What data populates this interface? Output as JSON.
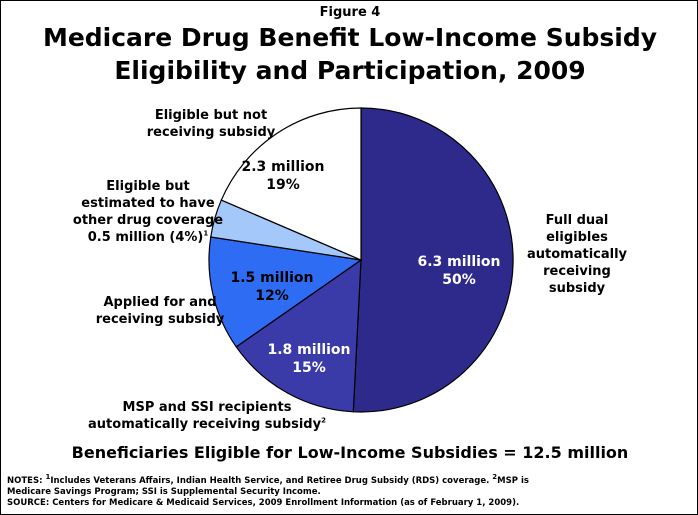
{
  "figure_label": "Figure 4",
  "title_line1": "Medicare Drug Benefit Low-Income Subsidy",
  "title_line2": "Eligibility and Participation, 2009",
  "chart_data": {
    "type": "pie",
    "title": "Medicare Drug Benefit Low-Income Subsidy Eligibility and Participation, 2009",
    "total_label": "Beneficiaries Eligible for Low-Income Subsidies = 12.5 million",
    "slices": [
      {
        "name": "Full dual eligibles automatically receiving subsidy",
        "value": 6.3,
        "percent": 50,
        "value_label": "6.3 million",
        "percent_label": "50%",
        "color": "#2e2a8c"
      },
      {
        "name": "MSP and SSI recipients automatically receiving subsidy",
        "value": 1.8,
        "percent": 15,
        "value_label": "1.8 million",
        "percent_label": "15%",
        "color": "#3a3aa8"
      },
      {
        "name": "Applied for and receiving subsidy",
        "value": 1.5,
        "percent": 12,
        "value_label": "1.5 million",
        "percent_label": "12%",
        "color": "#2f6cf4"
      },
      {
        "name": "Eligible but estimated to have other drug coverage",
        "value": 0.5,
        "percent": 4,
        "value_label": "0.5 million (4%)",
        "percent_label": "",
        "color": "#a4c8fa"
      },
      {
        "name": "Eligible but not receiving subsidy",
        "value": 2.3,
        "percent": 19,
        "value_label": "2.3 million",
        "percent_label": "19%",
        "color": "#ffffff"
      }
    ]
  },
  "labels": {
    "full_dual": [
      "Full dual",
      "eligibles",
      "automatically",
      "receiving",
      "subsidy"
    ],
    "msp_line1": "MSP and SSI recipients",
    "msp_line2": "automatically receiving subsidy",
    "msp_sup": "2",
    "applied": [
      "Applied for and",
      "receiving subsidy"
    ],
    "other_cov": [
      "Eligible but",
      "estimated to have",
      "other drug coverage"
    ],
    "other_cov_value": "0.5 million (4%)",
    "other_cov_sup": "1",
    "not_receiving": [
      "Eligible but not",
      "receiving subsidy"
    ]
  },
  "notes": {
    "line1_prefix": "NOTES: ",
    "sup1": "1",
    "line1_text": "Includes Veterans Affairs, Indian Health Service, and Retiree Drug Subsidy (RDS) coverage. ",
    "sup2": "2",
    "line1_tail": "MSP is",
    "line2": "Medicare Savings Program; SSI is Supplemental Security Income.",
    "line3": "SOURCE: Centers for Medicare & Medicaid Services, 2009 Enrollment Information (as of February 1, 2009)."
  }
}
